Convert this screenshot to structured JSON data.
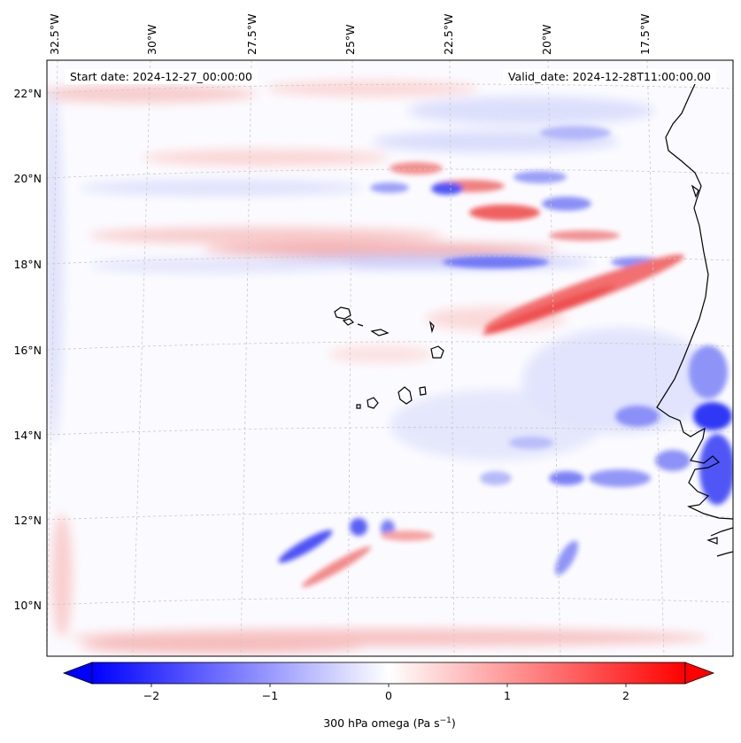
{
  "header": {
    "start_text": "Start date: 2024-12-27_00:00:00",
    "valid_text": "Valid_date: 2024-12-28T11:00:00.00"
  },
  "map": {
    "projection": "lambert-conformal",
    "longitude_labels": [
      "32.5°W",
      "30°W",
      "27.5°W",
      "25°W",
      "22.5°W",
      "20°W",
      "17.5°W"
    ],
    "latitude_labels": [
      "22°N",
      "20°N",
      "18°N",
      "16°N",
      "14°N",
      "12°N",
      "10°N"
    ],
    "gridlines": "dashed light gray",
    "features": [
      "West African coastline",
      "Cape Verde islands"
    ]
  },
  "colorbar": {
    "label_prefix": "300 hPa omega (Pa s",
    "label_exp": "−1",
    "label_suffix": ")",
    "ticks": [
      "−2",
      "−1",
      "0",
      "1",
      "2"
    ],
    "tick_values": [
      -2,
      -1,
      0,
      1,
      2
    ],
    "range": [
      -2.5,
      2.5
    ],
    "extend": "both",
    "colormap": "bwr",
    "colors": {
      "low": "#0000ff",
      "mid": "#ffffff",
      "high": "#ff0000"
    }
  }
}
